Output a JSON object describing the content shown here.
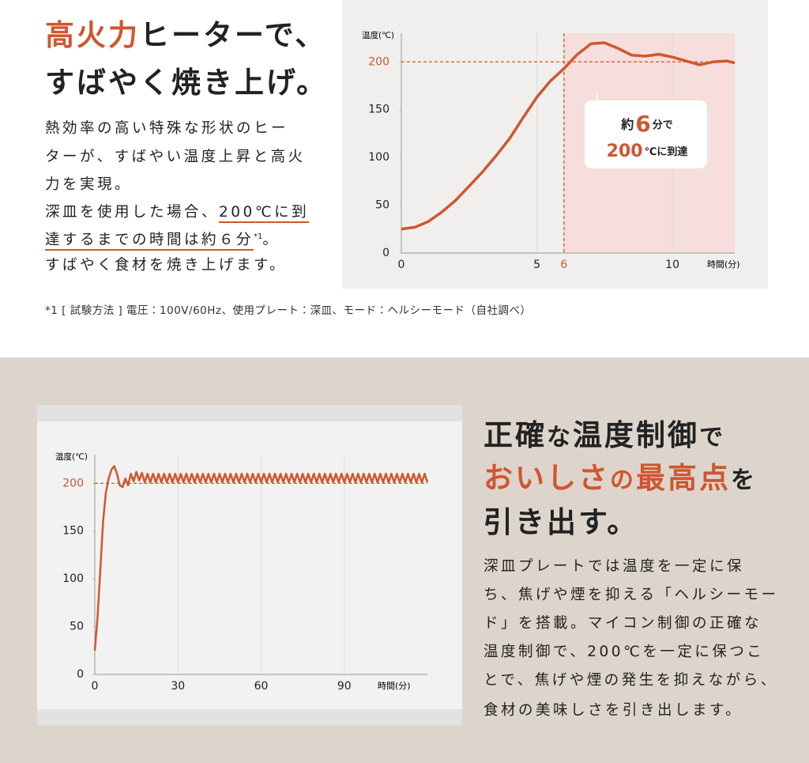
{
  "top": {
    "heading": [
      [
        "高火力",
        "ヒーターで、"
      ],
      [
        "すばやく焼き上げ。"
      ]
    ],
    "body": [
      [
        "熱効率の高い特殊な形状のヒー"
      ],
      [
        "ターが、すばやい温度上昇と高火"
      ],
      [
        "力を実現。"
      ],
      [
        "深皿を使用した場合、",
        "200℃に到"
      ],
      [
        "達するまでの時間は約６分",
        "*1",
        "。"
      ],
      [
        "すばやく食材を焼き上げます。"
      ]
    ],
    "footnote": "*1 [ 試験方法 ] 電圧：100V/60Hz、使用プレート：深皿、モード：ヘルシーモード（自社調べ）"
  },
  "bottom": {
    "heading": [
      [
        "正確",
        "な",
        "温度制御",
        "で"
      ],
      [
        "おいしさ",
        "の",
        "最高点",
        "を"
      ],
      [
        "引き出す。"
      ]
    ],
    "body": [
      "深皿プレートでは温度を一定に保",
      "ち、焦げや煙を抑える「ヘルシーモー",
      "ド」を搭載。マイコン制御の正確な",
      "温度制御で、200℃を一定に保つこ",
      "とで、焦げや煙の発生を抑えながら、",
      "食材の美味しさを引き出します。"
    ]
  },
  "chart_data": [
    {
      "type": "line",
      "y_label": "温度(℃)",
      "x_label": "時間(分)",
      "xlim": [
        0,
        12.3
      ],
      "ylim": [
        0,
        230
      ],
      "xticks": [
        0,
        5,
        6,
        10
      ],
      "yticks": [
        0,
        50,
        100,
        150,
        200
      ],
      "reference_x": 6,
      "reference_y": 200,
      "highlight_color": "#f5dedc",
      "annotation": [
        "約",
        "6",
        "分で",
        "200",
        "℃に到達"
      ],
      "x": [
        0,
        0.5,
        1,
        1.5,
        2,
        2.5,
        3,
        3.5,
        4,
        4.5,
        5,
        5.5,
        6,
        6.5,
        7,
        7.5,
        8,
        8.5,
        9,
        9.5,
        10,
        10.5,
        11,
        11.5,
        12,
        12.3
      ],
      "series": [
        {
          "color": "#d0562f",
          "values": [
            25,
            27,
            33,
            43,
            55,
            70,
            85,
            102,
            120,
            142,
            163,
            180,
            193,
            208,
            219,
            220,
            214,
            207,
            206,
            208,
            205,
            201,
            197,
            200,
            201,
            199
          ]
        }
      ]
    },
    {
      "type": "line",
      "y_label": "温度(℃)",
      "x_label": "時間(分)",
      "xlim": [
        0,
        120
      ],
      "ylim": [
        0,
        230
      ],
      "xticks": [
        0,
        30,
        60,
        90
      ],
      "yticks": [
        0,
        50,
        100,
        150,
        200
      ],
      "reference_y": 200,
      "x": [
        0,
        1,
        2,
        3,
        4,
        5,
        6,
        7,
        8,
        9,
        10,
        11,
        12,
        13,
        14,
        15,
        16,
        17,
        18,
        19,
        20,
        21,
        22,
        23,
        24,
        25,
        26,
        27,
        28,
        29,
        30,
        31,
        32,
        33,
        34,
        35,
        36,
        37,
        38,
        39,
        40,
        41,
        42,
        43,
        44,
        45,
        46,
        47,
        48,
        49,
        50,
        51,
        52,
        53,
        54,
        55,
        56,
        57,
        58,
        59,
        60,
        61,
        62,
        63,
        64,
        65,
        66,
        67,
        68,
        69,
        70,
        71,
        72,
        73,
        74,
        75,
        76,
        77,
        78,
        79,
        80,
        81,
        82,
        83,
        84,
        85,
        86,
        87,
        88,
        89,
        90,
        91,
        92,
        93,
        94,
        95,
        96,
        97,
        98,
        99,
        100,
        101,
        102,
        103,
        104,
        105,
        106,
        107,
        108,
        109,
        110,
        111,
        112,
        113,
        114,
        115,
        116,
        117,
        118,
        119,
        120
      ],
      "series": [
        {
          "color": "#d0562f",
          "values": [
            25,
            60,
            110,
            160,
            190,
            205,
            214,
            218,
            210,
            198,
            196,
            205,
            198,
            210,
            202,
            212,
            203,
            211,
            201,
            210,
            201,
            210,
            201,
            210,
            201,
            210,
            201,
            210,
            201,
            210,
            201,
            210,
            201,
            210,
            201,
            210,
            201,
            210,
            201,
            210,
            201,
            210,
            201,
            210,
            201,
            210,
            201,
            210,
            201,
            210,
            201,
            210,
            201,
            210,
            201,
            210,
            201,
            210,
            201,
            210,
            201,
            210,
            201,
            210,
            201,
            210,
            201,
            210,
            201,
            210,
            201,
            210,
            201,
            210,
            201,
            210,
            201,
            210,
            201,
            210,
            201,
            210,
            201,
            210,
            201,
            210,
            201,
            210,
            201,
            210,
            201,
            210,
            201,
            210,
            201,
            210,
            201,
            210,
            201,
            210,
            201,
            210,
            201,
            210,
            201,
            210,
            201,
            210,
            201,
            210,
            201,
            210,
            201,
            210,
            201,
            210,
            201,
            210,
            201,
            210,
            201
          ]
        }
      ]
    }
  ]
}
